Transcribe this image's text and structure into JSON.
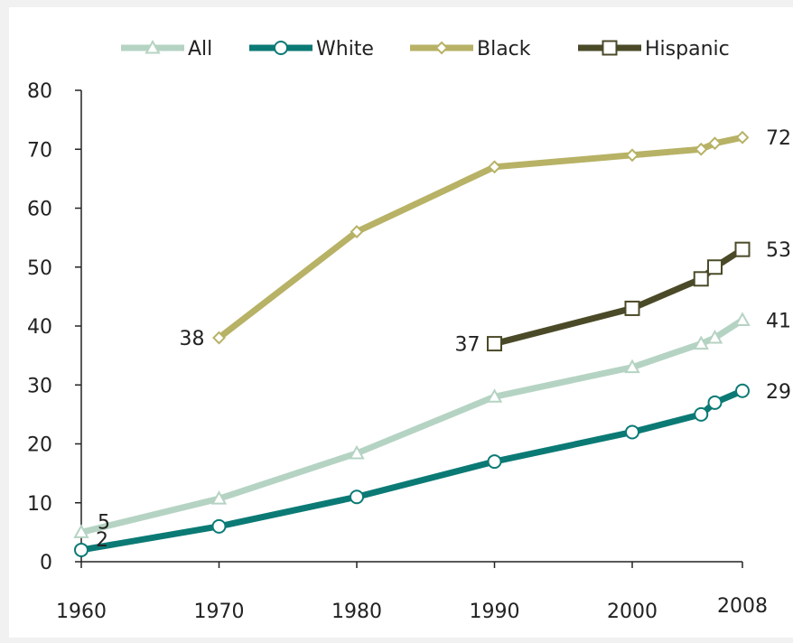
{
  "chart_data": {
    "type": "line",
    "title": "",
    "xlabel": "",
    "ylabel": "",
    "xlim": [
      1960,
      2008
    ],
    "ylim": [
      0,
      80
    ],
    "x_ticks": [
      "1960",
      "1970",
      "1980",
      "1990",
      "2000",
      "2008"
    ],
    "y_ticks": [
      "0",
      "10",
      "20",
      "30",
      "40",
      "50",
      "60",
      "70",
      "80"
    ],
    "grid": false,
    "legend_position": "top",
    "series": [
      {
        "name": "All",
        "color": "#b5d3c3",
        "marker": "triangle",
        "x": [
          1960,
          1970,
          1980,
          1990,
          2000,
          2005,
          2006,
          2008
        ],
        "y": [
          5,
          10.7,
          18.4,
          28,
          33,
          37,
          38,
          41
        ]
      },
      {
        "name": "White",
        "color": "#0b7a75",
        "marker": "circle",
        "x": [
          1960,
          1970,
          1980,
          1990,
          2000,
          2005,
          2006,
          2008
        ],
        "y": [
          2,
          6,
          11,
          17,
          22,
          25,
          27,
          29
        ]
      },
      {
        "name": "Black",
        "color": "#b7b265",
        "marker": "diamond",
        "x": [
          1970,
          1980,
          1990,
          2000,
          2005,
          2006,
          2008
        ],
        "y": [
          38,
          56,
          67,
          69,
          70,
          71,
          72
        ]
      },
      {
        "name": "Hispanic",
        "color": "#4b4a28",
        "marker": "square",
        "x": [
          1990,
          2000,
          2005,
          2006,
          2008
        ],
        "y": [
          37,
          43,
          48,
          50,
          53
        ]
      }
    ],
    "annotations": [
      {
        "text": "5",
        "series": "All",
        "x": 1960
      },
      {
        "text": "2",
        "series": "White",
        "x": 1960
      },
      {
        "text": "38",
        "series": "Black",
        "x": 1970
      },
      {
        "text": "37",
        "series": "Hispanic",
        "x": 1990
      },
      {
        "text": "72",
        "series": "Black",
        "x": 2008
      },
      {
        "text": "53",
        "series": "Hispanic",
        "x": 2008
      },
      {
        "text": "41",
        "series": "All",
        "x": 2008
      },
      {
        "text": "29",
        "series": "White",
        "x": 2008
      }
    ]
  }
}
